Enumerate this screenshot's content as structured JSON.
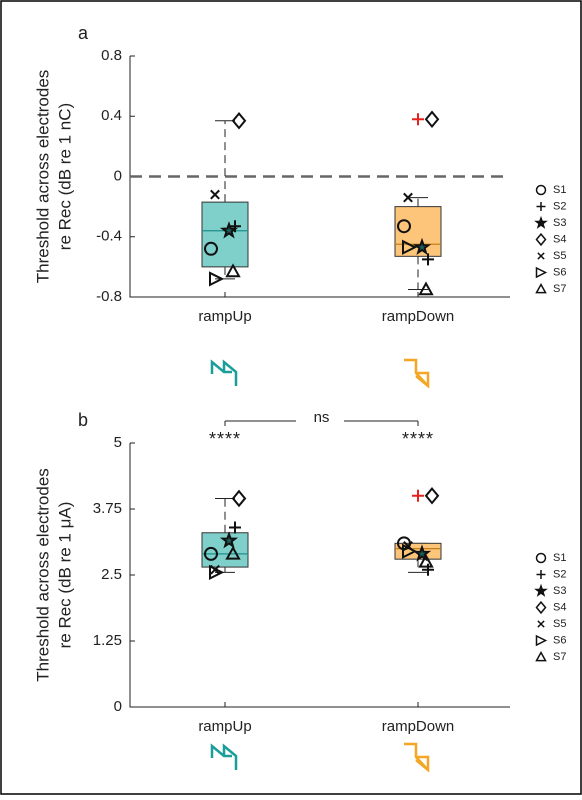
{
  "chart_data": [
    {
      "type": "box",
      "panel_label": "a",
      "ylabel": [
        "Threshold across electrodes",
        "re Rec (dB re 1 nC)"
      ],
      "categories": [
        "rampUp",
        "rampDown"
      ],
      "ylim": [
        -0.8,
        0.8
      ],
      "yticks": [
        -0.8,
        -0.4,
        0,
        0.4,
        0.8
      ],
      "reference_line": 0,
      "boxes": [
        {
          "color": "#7fcfca",
          "line_color": "#1f8f8a",
          "q1": -0.6,
          "median": -0.36,
          "q3": -0.17,
          "whisker_low": -0.68,
          "whisker_high": 0.37,
          "outliers": []
        },
        {
          "color": "#fcc57a",
          "line_color": "#c47f1a",
          "q1": -0.53,
          "median": -0.45,
          "q3": -0.2,
          "whisker_low": -0.75,
          "whisker_high": -0.14,
          "outliers": [
            {
              "value": 0.38,
              "color": "#e8231f"
            }
          ]
        }
      ],
      "subjects": [
        {
          "name": "S1",
          "marker": "circle",
          "values": [
            -0.48,
            -0.33
          ]
        },
        {
          "name": "S2",
          "marker": "plus",
          "values": [
            -0.33,
            -0.55
          ]
        },
        {
          "name": "S3",
          "marker": "star",
          "values": [
            -0.36,
            -0.47
          ]
        },
        {
          "name": "S4",
          "marker": "diamond",
          "values": [
            0.37,
            0.38
          ]
        },
        {
          "name": "S5",
          "marker": "x",
          "values": [
            -0.12,
            -0.14
          ]
        },
        {
          "name": "S6",
          "marker": "triangle-right",
          "values": [
            -0.68,
            -0.47
          ]
        },
        {
          "name": "S7",
          "marker": "triangle-up",
          "values": [
            -0.63,
            -0.75
          ]
        }
      ]
    },
    {
      "type": "box",
      "panel_label": "b",
      "ylabel": [
        "Threshold across electrodes",
        "re Rec (dB re 1 μA)"
      ],
      "categories": [
        "rampUp",
        "rampDown"
      ],
      "ylim": [
        0,
        5
      ],
      "yticks": [
        0,
        1.25,
        2.5,
        3.75,
        5
      ],
      "significance": {
        "label": "ns",
        "group_labels": [
          "****",
          "****"
        ]
      },
      "boxes": [
        {
          "color": "#7fcfca",
          "line_color": "#1f8f8a",
          "q1": 2.65,
          "median": 2.9,
          "q3": 3.3,
          "whisker_low": 2.55,
          "whisker_high": 3.95,
          "outliers": []
        },
        {
          "color": "#fcc57a",
          "line_color": "#c47f1a",
          "q1": 2.8,
          "median": 3.0,
          "q3": 3.1,
          "whisker_low": 2.55,
          "whisker_high": 3.1,
          "outliers": [
            {
              "value": 4.0,
              "color": "#e8231f"
            }
          ]
        }
      ],
      "subjects": [
        {
          "name": "S1",
          "marker": "circle",
          "values": [
            2.9,
            3.1
          ]
        },
        {
          "name": "S2",
          "marker": "plus",
          "values": [
            3.4,
            2.6
          ]
        },
        {
          "name": "S3",
          "marker": "star",
          "values": [
            3.15,
            2.9
          ]
        },
        {
          "name": "S4",
          "marker": "diamond",
          "values": [
            3.95,
            4.0
          ]
        },
        {
          "name": "S5",
          "marker": "x",
          "values": [
            2.6,
            3.05
          ]
        },
        {
          "name": "S6",
          "marker": "triangle-right",
          "values": [
            2.55,
            2.95
          ]
        },
        {
          "name": "S7",
          "marker": "triangle-up",
          "values": [
            2.9,
            2.75
          ]
        }
      ]
    }
  ]
}
